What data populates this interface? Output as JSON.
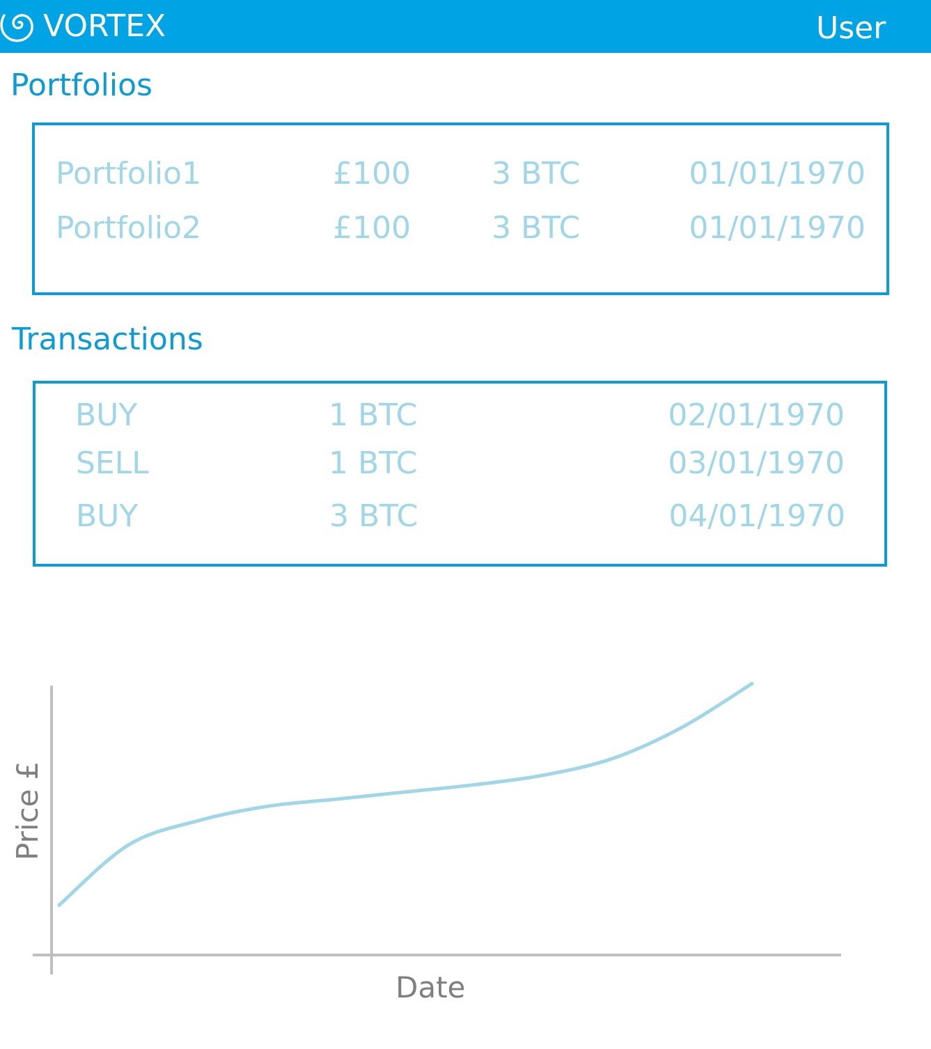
{
  "header": {
    "logo_icon": "spiral-logo-icon",
    "title": "VORTEX",
    "user_label": "User"
  },
  "portfolios": {
    "title": "Portfolios",
    "rows": [
      {
        "name": "Portfolio1",
        "value": "£100",
        "holding": "3 BTC",
        "date": "01/01/1970"
      },
      {
        "name": "Portfolio2",
        "value": "£100",
        "holding": "3 BTC",
        "date": "01/01/1970"
      }
    ]
  },
  "transactions": {
    "title": "Transactions",
    "rows": [
      {
        "type": "BUY",
        "amount": "1 BTC",
        "date": "02/01/1970"
      },
      {
        "type": "SELL",
        "amount": "1 BTC",
        "date": "03/01/1970"
      },
      {
        "type": "BUY",
        "amount": "3 BTC",
        "date": "04/01/1970"
      }
    ]
  },
  "chart_data": {
    "type": "line",
    "xlabel": "Date",
    "ylabel": "Price £",
    "grid": false,
    "legend": "none",
    "series": [
      {
        "color": "#9fd7e8",
        "x": [
          0,
          0.1,
          0.2,
          0.3,
          0.4,
          0.5,
          0.6,
          0.7,
          0.8,
          0.9,
          1.0
        ],
        "y": [
          0.08,
          0.33,
          0.43,
          0.49,
          0.52,
          0.55,
          0.58,
          0.62,
          0.69,
          0.82,
          1.0
        ]
      }
    ],
    "colors": {
      "axis": "#bfbfbf",
      "line": "#9fd7e8"
    }
  }
}
